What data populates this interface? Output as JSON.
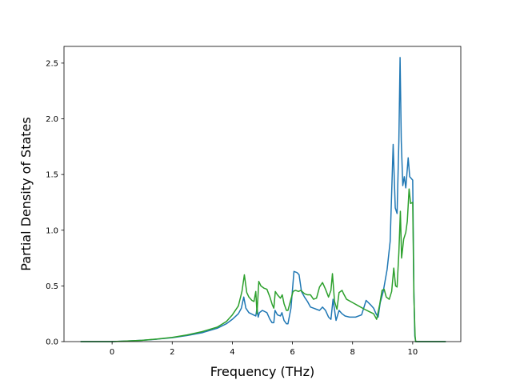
{
  "chart_data": {
    "type": "line",
    "title": "",
    "xlabel": "Frequency (THz)",
    "ylabel": "Partial Density of States",
    "xlim": [
      -1.6,
      11.6
    ],
    "ylim": [
      0.0,
      2.65
    ],
    "xticks": [
      0,
      2,
      4,
      6,
      8,
      10
    ],
    "xtick_labels": [
      "0",
      "2",
      "4",
      "6",
      "8",
      "10"
    ],
    "yticks": [
      0.0,
      0.5,
      1.0,
      1.5,
      2.0,
      2.5
    ],
    "ytick_labels": [
      "0.0",
      "0.5",
      "1.0",
      "1.5",
      "2.0",
      "2.5"
    ],
    "grid": false,
    "legend": "none",
    "series": [
      {
        "color": "#1f77b4",
        "points": [
          [
            -1.05,
            0.0
          ],
          [
            0.0,
            0.0
          ],
          [
            0.5,
            0.005
          ],
          [
            1.0,
            0.012
          ],
          [
            1.5,
            0.022
          ],
          [
            2.0,
            0.035
          ],
          [
            2.5,
            0.055
          ],
          [
            3.0,
            0.08
          ],
          [
            3.5,
            0.12
          ],
          [
            3.8,
            0.16
          ],
          [
            4.0,
            0.2
          ],
          [
            4.2,
            0.25
          ],
          [
            4.3,
            0.3
          ],
          [
            4.38,
            0.4
          ],
          [
            4.45,
            0.3
          ],
          [
            4.55,
            0.26
          ],
          [
            4.7,
            0.24
          ],
          [
            4.78,
            0.23
          ],
          [
            4.82,
            0.3
          ],
          [
            4.86,
            0.22
          ],
          [
            4.9,
            0.26
          ],
          [
            5.0,
            0.28
          ],
          [
            5.15,
            0.26
          ],
          [
            5.25,
            0.2
          ],
          [
            5.32,
            0.17
          ],
          [
            5.38,
            0.17
          ],
          [
            5.42,
            0.28
          ],
          [
            5.5,
            0.24
          ],
          [
            5.6,
            0.23
          ],
          [
            5.65,
            0.26
          ],
          [
            5.72,
            0.19
          ],
          [
            5.8,
            0.16
          ],
          [
            5.85,
            0.16
          ],
          [
            5.95,
            0.3
          ],
          [
            6.05,
            0.63
          ],
          [
            6.15,
            0.62
          ],
          [
            6.22,
            0.6
          ],
          [
            6.3,
            0.45
          ],
          [
            6.4,
            0.4
          ],
          [
            6.5,
            0.36
          ],
          [
            6.6,
            0.31
          ],
          [
            6.7,
            0.3
          ],
          [
            6.8,
            0.29
          ],
          [
            6.9,
            0.28
          ],
          [
            7.0,
            0.31
          ],
          [
            7.1,
            0.28
          ],
          [
            7.2,
            0.22
          ],
          [
            7.28,
            0.2
          ],
          [
            7.35,
            0.38
          ],
          [
            7.45,
            0.19
          ],
          [
            7.55,
            0.28
          ],
          [
            7.65,
            0.25
          ],
          [
            7.75,
            0.23
          ],
          [
            7.9,
            0.22
          ],
          [
            8.1,
            0.22
          ],
          [
            8.3,
            0.24
          ],
          [
            8.45,
            0.37
          ],
          [
            8.6,
            0.33
          ],
          [
            8.7,
            0.3
          ],
          [
            8.78,
            0.25
          ],
          [
            8.85,
            0.22
          ],
          [
            8.92,
            0.35
          ],
          [
            9.02,
            0.45
          ],
          [
            9.15,
            0.65
          ],
          [
            9.25,
            0.9
          ],
          [
            9.35,
            1.77
          ],
          [
            9.42,
            1.2
          ],
          [
            9.48,
            1.15
          ],
          [
            9.54,
            1.8
          ],
          [
            9.58,
            2.55
          ],
          [
            9.62,
            1.8
          ],
          [
            9.67,
            1.4
          ],
          [
            9.72,
            1.48
          ],
          [
            9.77,
            1.38
          ],
          [
            9.85,
            1.65
          ],
          [
            9.9,
            1.48
          ],
          [
            10.0,
            1.45
          ],
          [
            10.04,
            0.45
          ],
          [
            10.07,
            0.05
          ],
          [
            10.1,
            0.0
          ],
          [
            11.1,
            0.0
          ]
        ]
      },
      {
        "color": "#2ca02c",
        "points": [
          [
            -1.05,
            0.0
          ],
          [
            0.0,
            0.0
          ],
          [
            0.5,
            0.005
          ],
          [
            1.0,
            0.012
          ],
          [
            1.5,
            0.023
          ],
          [
            2.0,
            0.038
          ],
          [
            2.5,
            0.06
          ],
          [
            3.0,
            0.09
          ],
          [
            3.5,
            0.13
          ],
          [
            3.8,
            0.18
          ],
          [
            4.0,
            0.24
          ],
          [
            4.2,
            0.32
          ],
          [
            4.32,
            0.45
          ],
          [
            4.4,
            0.6
          ],
          [
            4.48,
            0.44
          ],
          [
            4.55,
            0.4
          ],
          [
            4.65,
            0.37
          ],
          [
            4.72,
            0.36
          ],
          [
            4.78,
            0.45
          ],
          [
            4.82,
            0.25
          ],
          [
            4.88,
            0.54
          ],
          [
            4.95,
            0.5
          ],
          [
            5.05,
            0.48
          ],
          [
            5.15,
            0.47
          ],
          [
            5.25,
            0.4
          ],
          [
            5.33,
            0.33
          ],
          [
            5.38,
            0.3
          ],
          [
            5.43,
            0.45
          ],
          [
            5.5,
            0.42
          ],
          [
            5.6,
            0.39
          ],
          [
            5.66,
            0.42
          ],
          [
            5.72,
            0.34
          ],
          [
            5.8,
            0.28
          ],
          [
            5.85,
            0.28
          ],
          [
            5.95,
            0.38
          ],
          [
            6.02,
            0.45
          ],
          [
            6.1,
            0.46
          ],
          [
            6.2,
            0.45
          ],
          [
            6.28,
            0.46
          ],
          [
            6.4,
            0.43
          ],
          [
            6.5,
            0.42
          ],
          [
            6.6,
            0.42
          ],
          [
            6.7,
            0.38
          ],
          [
            6.8,
            0.39
          ],
          [
            6.9,
            0.49
          ],
          [
            7.0,
            0.53
          ],
          [
            7.1,
            0.47
          ],
          [
            7.2,
            0.4
          ],
          [
            7.28,
            0.46
          ],
          [
            7.33,
            0.61
          ],
          [
            7.4,
            0.36
          ],
          [
            7.48,
            0.29
          ],
          [
            7.55,
            0.44
          ],
          [
            7.65,
            0.46
          ],
          [
            7.7,
            0.43
          ],
          [
            7.8,
            0.38
          ],
          [
            8.0,
            0.35
          ],
          [
            8.2,
            0.32
          ],
          [
            8.4,
            0.29
          ],
          [
            8.55,
            0.27
          ],
          [
            8.7,
            0.25
          ],
          [
            8.8,
            0.2
          ],
          [
            8.9,
            0.33
          ],
          [
            8.98,
            0.46
          ],
          [
            9.05,
            0.47
          ],
          [
            9.12,
            0.4
          ],
          [
            9.22,
            0.38
          ],
          [
            9.3,
            0.45
          ],
          [
            9.37,
            0.66
          ],
          [
            9.43,
            0.5
          ],
          [
            9.48,
            0.49
          ],
          [
            9.54,
            0.8
          ],
          [
            9.59,
            1.17
          ],
          [
            9.63,
            0.75
          ],
          [
            9.7,
            0.92
          ],
          [
            9.77,
            0.98
          ],
          [
            9.82,
            1.08
          ],
          [
            9.88,
            1.37
          ],
          [
            9.93,
            1.24
          ],
          [
            10.0,
            1.25
          ],
          [
            10.04,
            0.4
          ],
          [
            10.08,
            0.05
          ],
          [
            10.1,
            0.0
          ],
          [
            11.1,
            0.0
          ]
        ]
      }
    ]
  }
}
